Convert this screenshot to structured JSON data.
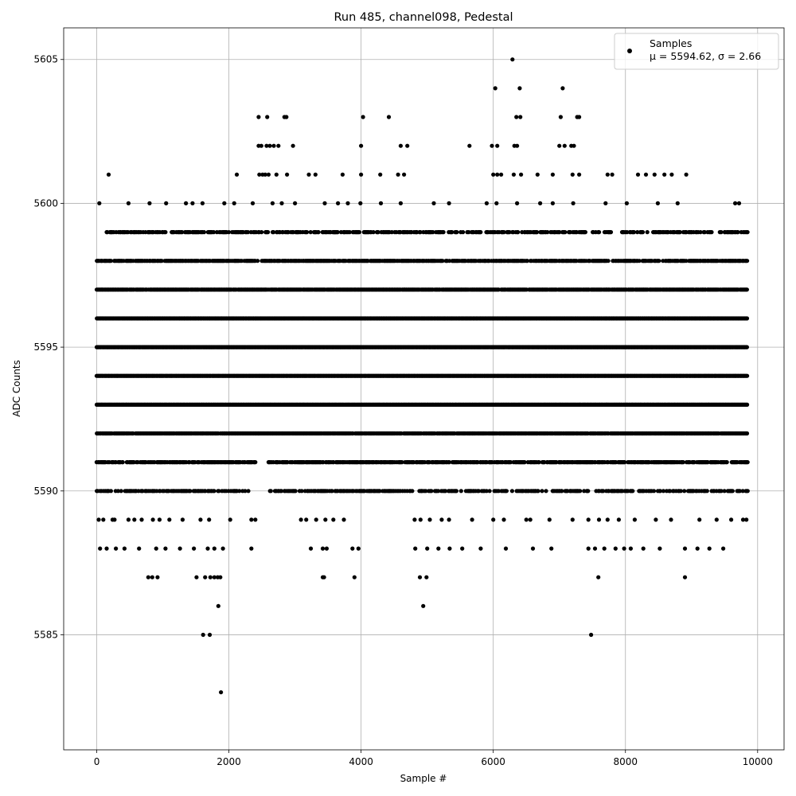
{
  "chart_data": {
    "type": "scatter",
    "title": "Run 485, channel098, Pedestal",
    "xlabel": "Sample #",
    "ylabel": "ADC Counts",
    "xlim": [
      -500,
      10400
    ],
    "ylim": [
      5581.0,
      5606.1
    ],
    "xticks": [
      0,
      2000,
      4000,
      6000,
      8000,
      10000
    ],
    "yticks": [
      5585,
      5590,
      5595,
      5600,
      5605
    ],
    "grid": true,
    "legend_position": "top-right",
    "series": [
      {
        "name": "Samples",
        "legend_sub": "μ = 5594.62, σ = 2.66",
        "color": "#000000",
        "marker": "circle",
        "x_range": [
          0,
          9840
        ],
        "sample_count": 9840,
        "mean": 5594.62,
        "sigma": 2.66,
        "points": [
          [
            1610,
            5585
          ],
          [
            1710,
            5585
          ],
          [
            7480,
            5585
          ],
          [
            1880,
            5583
          ],
          [
            1840,
            5586
          ],
          [
            4940,
            5586
          ],
          [
            780,
            5587
          ],
          [
            840,
            5587
          ],
          [
            920,
            5587
          ],
          [
            1510,
            5587
          ],
          [
            1640,
            5587
          ],
          [
            1720,
            5587
          ],
          [
            1780,
            5587
          ],
          [
            1830,
            5587
          ],
          [
            1870,
            5587
          ],
          [
            3420,
            5587
          ],
          [
            3440,
            5587
          ],
          [
            3900,
            5587
          ],
          [
            4890,
            5587
          ],
          [
            4990,
            5587
          ],
          [
            7590,
            5587
          ],
          [
            8900,
            5587
          ],
          [
            6290,
            5605
          ],
          [
            6030,
            5604
          ],
          [
            6400,
            5604
          ],
          [
            7050,
            5604
          ],
          [
            2450,
            5603
          ],
          [
            2580,
            5603
          ],
          [
            2840,
            5603
          ],
          [
            2870,
            5603
          ],
          [
            4030,
            5603
          ],
          [
            4420,
            5603
          ],
          [
            6350,
            5603
          ],
          [
            6410,
            5603
          ],
          [
            7020,
            5603
          ],
          [
            7270,
            5603
          ],
          [
            7300,
            5603
          ],
          [
            2450,
            5602
          ],
          [
            2490,
            5602
          ],
          [
            2570,
            5602
          ],
          [
            2620,
            5602
          ],
          [
            2680,
            5602
          ],
          [
            2750,
            5602
          ],
          [
            2970,
            5602
          ],
          [
            4000,
            5602
          ],
          [
            4600,
            5602
          ],
          [
            4700,
            5602
          ],
          [
            5640,
            5602
          ],
          [
            5980,
            5602
          ],
          [
            6060,
            5602
          ],
          [
            6320,
            5602
          ],
          [
            6360,
            5602
          ],
          [
            7000,
            5602
          ],
          [
            7080,
            5602
          ],
          [
            7180,
            5602
          ],
          [
            7220,
            5602
          ],
          [
            180,
            5601
          ],
          [
            2120,
            5601
          ],
          [
            2460,
            5601
          ],
          [
            2510,
            5601
          ],
          [
            2550,
            5601
          ],
          [
            2600,
            5601
          ],
          [
            2720,
            5601
          ],
          [
            2880,
            5601
          ],
          [
            3210,
            5601
          ],
          [
            3310,
            5601
          ],
          [
            3720,
            5601
          ],
          [
            4000,
            5601
          ],
          [
            4290,
            5601
          ],
          [
            4560,
            5601
          ],
          [
            4650,
            5601
          ],
          [
            6000,
            5601
          ],
          [
            6060,
            5601
          ],
          [
            6120,
            5601
          ],
          [
            6310,
            5601
          ],
          [
            6420,
            5601
          ],
          [
            6670,
            5601
          ],
          [
            6900,
            5601
          ],
          [
            7200,
            5601
          ],
          [
            7300,
            5601
          ],
          [
            7730,
            5601
          ],
          [
            7800,
            5601
          ],
          [
            8190,
            5601
          ],
          [
            8310,
            5601
          ],
          [
            8440,
            5601
          ],
          [
            8590,
            5601
          ],
          [
            8700,
            5601
          ],
          [
            8920,
            5601
          ],
          [
            40,
            5600
          ],
          [
            480,
            5600
          ],
          [
            800,
            5600
          ],
          [
            1050,
            5600
          ],
          [
            1350,
            5600
          ],
          [
            1450,
            5600
          ],
          [
            1600,
            5600
          ],
          [
            1930,
            5600
          ],
          [
            2080,
            5600
          ],
          [
            2360,
            5600
          ],
          [
            2660,
            5600
          ],
          [
            2800,
            5600
          ],
          [
            3000,
            5600
          ],
          [
            3450,
            5600
          ],
          [
            3650,
            5600
          ],
          [
            3800,
            5600
          ],
          [
            3990,
            5600
          ],
          [
            4300,
            5600
          ],
          [
            4600,
            5600
          ],
          [
            5100,
            5600
          ],
          [
            5330,
            5600
          ],
          [
            5900,
            5600
          ],
          [
            6050,
            5600
          ],
          [
            6360,
            5600
          ],
          [
            6710,
            5600
          ],
          [
            6900,
            5600
          ],
          [
            7210,
            5600
          ],
          [
            7700,
            5600
          ],
          [
            8020,
            5600
          ],
          [
            8490,
            5600
          ],
          [
            8790,
            5600
          ],
          [
            9660,
            5600
          ],
          [
            9720,
            5600
          ],
          [
            30,
            5589
          ],
          [
            100,
            5589
          ],
          [
            240,
            5589
          ],
          [
            270,
            5589
          ],
          [
            480,
            5589
          ],
          [
            570,
            5589
          ],
          [
            680,
            5589
          ],
          [
            850,
            5589
          ],
          [
            950,
            5589
          ],
          [
            1100,
            5589
          ],
          [
            1300,
            5589
          ],
          [
            1570,
            5589
          ],
          [
            1700,
            5589
          ],
          [
            2020,
            5589
          ],
          [
            2340,
            5589
          ],
          [
            2400,
            5589
          ],
          [
            3090,
            5589
          ],
          [
            3170,
            5589
          ],
          [
            3320,
            5589
          ],
          [
            3460,
            5589
          ],
          [
            3580,
            5589
          ],
          [
            3740,
            5589
          ],
          [
            4810,
            5589
          ],
          [
            4900,
            5589
          ],
          [
            5040,
            5589
          ],
          [
            5220,
            5589
          ],
          [
            5330,
            5589
          ],
          [
            5680,
            5589
          ],
          [
            6000,
            5589
          ],
          [
            6160,
            5589
          ],
          [
            6500,
            5589
          ],
          [
            6560,
            5589
          ],
          [
            6850,
            5589
          ],
          [
            7200,
            5589
          ],
          [
            7440,
            5589
          ],
          [
            7600,
            5589
          ],
          [
            7730,
            5589
          ],
          [
            7900,
            5589
          ],
          [
            8140,
            5589
          ],
          [
            8460,
            5589
          ],
          [
            8690,
            5589
          ],
          [
            9120,
            5589
          ],
          [
            9380,
            5589
          ],
          [
            9600,
            5589
          ],
          [
            9780,
            5589
          ],
          [
            9830,
            5589
          ],
          [
            50,
            5588
          ],
          [
            150,
            5588
          ],
          [
            290,
            5588
          ],
          [
            420,
            5588
          ],
          [
            640,
            5588
          ],
          [
            900,
            5588
          ],
          [
            1040,
            5588
          ],
          [
            1260,
            5588
          ],
          [
            1470,
            5588
          ],
          [
            1680,
            5588
          ],
          [
            1780,
            5588
          ],
          [
            1910,
            5588
          ],
          [
            2340,
            5588
          ],
          [
            3240,
            5588
          ],
          [
            3420,
            5588
          ],
          [
            3480,
            5588
          ],
          [
            3870,
            5588
          ],
          [
            3960,
            5588
          ],
          [
            4820,
            5588
          ],
          [
            5000,
            5588
          ],
          [
            5170,
            5588
          ],
          [
            5340,
            5588
          ],
          [
            5530,
            5588
          ],
          [
            5810,
            5588
          ],
          [
            6190,
            5588
          ],
          [
            6600,
            5588
          ],
          [
            6880,
            5588
          ],
          [
            7440,
            5588
          ],
          [
            7540,
            5588
          ],
          [
            7680,
            5588
          ],
          [
            7850,
            5588
          ],
          [
            7980,
            5588
          ],
          [
            8080,
            5588
          ],
          [
            8270,
            5588
          ],
          [
            8520,
            5588
          ],
          [
            8900,
            5588
          ],
          [
            9090,
            5588
          ],
          [
            9270,
            5588
          ],
          [
            9480,
            5588
          ]
        ],
        "bands": [
          {
            "y": 5599,
            "density": 0.55,
            "ranges": [
              [
                150,
                2000
              ],
              [
                2050,
                3600
              ],
              [
                3600,
                5800
              ],
              [
                5800,
                7800
              ],
              [
                7950,
                9850
              ]
            ]
          },
          {
            "y": 5598,
            "density": 0.75,
            "ranges": [
              [
                0,
                9850
              ]
            ]
          },
          {
            "y": 5597,
            "density": 0.95,
            "ranges": [
              [
                0,
                9850
              ]
            ]
          },
          {
            "y": 5596,
            "density": 1.0,
            "ranges": [
              [
                0,
                9850
              ]
            ]
          },
          {
            "y": 5595,
            "density": 1.0,
            "ranges": [
              [
                0,
                9850
              ]
            ]
          },
          {
            "y": 5594,
            "density": 1.0,
            "ranges": [
              [
                0,
                9850
              ]
            ]
          },
          {
            "y": 5593,
            "density": 1.0,
            "ranges": [
              [
                0,
                9850
              ]
            ]
          },
          {
            "y": 5592,
            "density": 0.9,
            "ranges": [
              [
                0,
                2450
              ],
              [
                2450,
                9850
              ]
            ]
          },
          {
            "y": 5591,
            "density": 0.75,
            "ranges": [
              [
                0,
                2400
              ],
              [
                2600,
                9850
              ]
            ]
          },
          {
            "y": 5590,
            "density": 0.5,
            "ranges": [
              [
                0,
                2300
              ],
              [
                2600,
                9850
              ]
            ]
          }
        ]
      }
    ]
  }
}
